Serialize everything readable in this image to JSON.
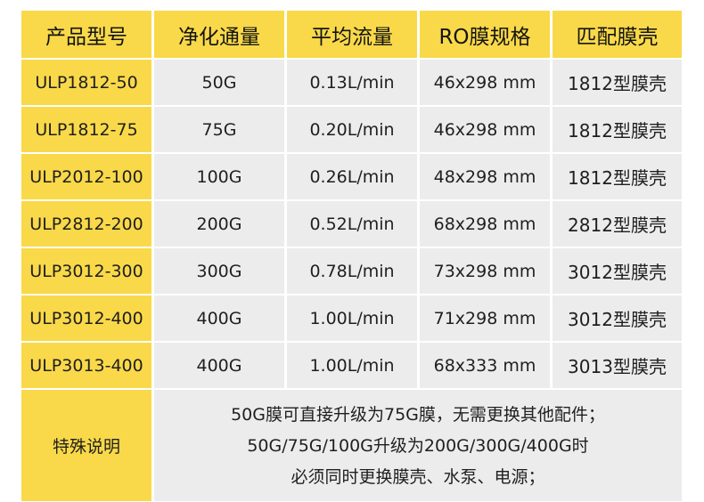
{
  "table": {
    "headers": [
      "产品型号",
      "净化通量",
      "平均流量",
      "RO膜规格",
      "匹配膜壳"
    ],
    "rows": [
      [
        "ULP1812-50",
        "50G",
        "0.13L/min",
        "46x298 mm",
        "1812型膜壳"
      ],
      [
        "ULP1812-75",
        "75G",
        "0.20L/min",
        "46x298 mm",
        "1812型膜壳"
      ],
      [
        "ULP2012-100",
        "100G",
        "0.26L/min",
        "48x298 mm",
        "1812型膜壳"
      ],
      [
        "ULP2812-200",
        "200G",
        "0.52L/min",
        "68x298 mm",
        "2812型膜壳"
      ],
      [
        "ULP3012-300",
        "300G",
        "0.78L/min",
        "73x298 mm",
        "3012型膜壳"
      ],
      [
        "ULP3012-400",
        "400G",
        "1.00L/min",
        "71x298 mm",
        "3012型膜壳"
      ],
      [
        "ULP3013-400",
        "400G",
        "1.00L/min",
        "68x333 mm",
        "3013型膜壳"
      ]
    ],
    "note": {
      "title": "特殊说明",
      "lines": [
        "50G膜可直接升级为75G膜，无需更换其他配件；",
        "50G/75G/100G升级为200G/300G/400G时",
        "必须同时更换膜壳、水泵、电源；"
      ]
    }
  },
  "colors": {
    "header_yellow": "#f9d949",
    "cell_gray": "#ececec",
    "text": "#1f1f1f"
  }
}
